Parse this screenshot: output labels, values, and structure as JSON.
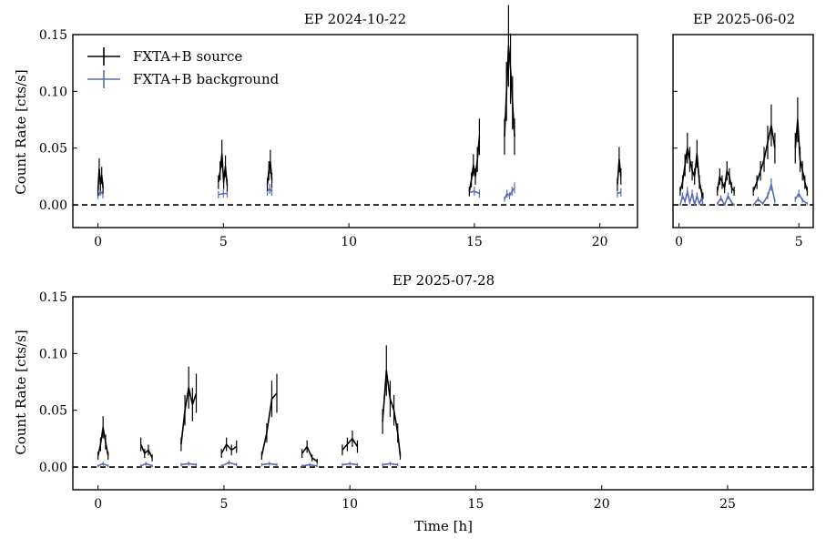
{
  "chart_data": [
    {
      "type": "line",
      "panel": "top-left",
      "title": "EP 2024-10-22",
      "xlabel": "",
      "ylabel": "Count Rate [cts/s]",
      "xlim": [
        -1.0,
        21.5
      ],
      "ylim": [
        -0.02,
        0.15
      ],
      "xticks": [
        0,
        5,
        10,
        15,
        20
      ],
      "xtick_labels": [
        "0",
        "5",
        "10",
        "15",
        "20"
      ],
      "yticks": [
        0.0,
        0.05,
        0.1,
        0.15
      ],
      "ytick_labels": [
        "0.00",
        "0.05",
        "0.10",
        "0.15"
      ],
      "legend": {
        "placement": "top-left",
        "entries": [
          {
            "label": "FXTA+B source",
            "color": "#000000"
          },
          {
            "label": "FXTA+B background",
            "color": "#5b6bb0"
          }
        ]
      },
      "series": [
        {
          "name": "FXTA+B source",
          "color": "#000000",
          "segments": [
            {
              "x": [
                0.0,
                0.05,
                0.1,
                0.15,
                0.2
              ],
              "y": [
                0.012,
                0.032,
                0.018,
                0.026,
                0.015
              ]
            },
            {
              "x": [
                4.8,
                4.87,
                4.94,
                5.01,
                5.08,
                5.15
              ],
              "y": [
                0.02,
                0.03,
                0.045,
                0.02,
                0.034,
                0.017
              ]
            },
            {
              "x": [
                6.75,
                6.81,
                6.87,
                6.93
              ],
              "y": [
                0.018,
                0.03,
                0.038,
                0.022
              ]
            },
            {
              "x": [
                14.8,
                14.88,
                14.96,
                15.04,
                15.12,
                15.2
              ],
              "y": [
                0.012,
                0.022,
                0.035,
                0.025,
                0.04,
                0.06
              ]
            },
            {
              "x": [
                16.2,
                16.28,
                16.36,
                16.44,
                16.52,
                16.6
              ],
              "y": [
                0.06,
                0.1,
                0.14,
                0.12,
                0.09,
                0.06
              ]
            },
            {
              "x": [
                20.7,
                20.77,
                20.84
              ],
              "y": [
                0.018,
                0.04,
                0.025
              ]
            }
          ]
        },
        {
          "name": "FXTA+B background",
          "color": "#5b6bb0",
          "segments": [
            {
              "x": [
                0.0,
                0.1,
                0.2
              ],
              "y": [
                0.008,
                0.012,
                0.009
              ]
            },
            {
              "x": [
                4.8,
                5.0,
                5.15
              ],
              "y": [
                0.009,
                0.01,
                0.01
              ]
            },
            {
              "x": [
                6.75,
                6.85,
                6.93
              ],
              "y": [
                0.012,
                0.014,
                0.012
              ]
            },
            {
              "x": [
                14.8,
                15.0,
                15.2
              ],
              "y": [
                0.011,
                0.012,
                0.01
              ]
            },
            {
              "x": [
                16.2,
                16.3,
                16.4,
                16.5,
                16.6
              ],
              "y": [
                0.005,
                0.01,
                0.008,
                0.012,
                0.015
              ]
            },
            {
              "x": [
                20.7,
                20.84
              ],
              "y": [
                0.01,
                0.011
              ]
            }
          ]
        }
      ]
    },
    {
      "type": "line",
      "panel": "top-right",
      "title": "EP 2025-06-02",
      "xlabel": "",
      "ylabel": "",
      "xlim": [
        -0.25,
        5.6
      ],
      "ylim": [
        -0.02,
        0.15
      ],
      "xticks": [
        0,
        5
      ],
      "xtick_labels": [
        "0",
        "5"
      ],
      "yticks": [
        0.0,
        0.05,
        0.1,
        0.15
      ],
      "ytick_labels": [],
      "series": [
        {
          "name": "FXTA+B source",
          "color": "#000000",
          "segments": [
            {
              "x": [
                0.05,
                0.15,
                0.25,
                0.35,
                0.45,
                0.55,
                0.65,
                0.75,
                0.85,
                0.95,
                1.0
              ],
              "y": [
                0.012,
                0.02,
                0.035,
                0.05,
                0.04,
                0.03,
                0.025,
                0.045,
                0.02,
                0.01,
                0.008
              ]
            },
            {
              "x": [
                1.6,
                1.7,
                1.8,
                1.9,
                2.0,
                2.1,
                2.2,
                2.3
              ],
              "y": [
                0.012,
                0.025,
                0.02,
                0.015,
                0.03,
                0.025,
                0.015,
                0.012
              ]
            },
            {
              "x": [
                3.1,
                3.25,
                3.4,
                3.55,
                3.7,
                3.85,
                4.0
              ],
              "y": [
                0.012,
                0.02,
                0.03,
                0.04,
                0.055,
                0.07,
                0.05
              ]
            },
            {
              "x": [
                4.85,
                4.95,
                5.05,
                5.15,
                5.25,
                5.35
              ],
              "y": [
                0.05,
                0.075,
                0.04,
                0.03,
                0.02,
                0.012
              ]
            }
          ]
        },
        {
          "name": "FXTA+B background",
          "color": "#5b6bb0",
          "segments": [
            {
              "x": [
                0.05,
                0.15,
                0.25,
                0.35,
                0.45,
                0.55,
                0.65,
                0.75,
                0.85,
                0.95,
                1.0
              ],
              "y": [
                0.0,
                0.008,
                0.003,
                0.012,
                0.002,
                0.01,
                0.0,
                0.008,
                0.001,
                0.006,
                0.0
              ]
            },
            {
              "x": [
                1.6,
                1.75,
                1.9,
                2.05,
                2.2,
                2.3
              ],
              "y": [
                0.001,
                0.006,
                0.0,
                0.008,
                0.002,
                0.0
              ]
            },
            {
              "x": [
                3.1,
                3.3,
                3.5,
                3.7,
                3.85,
                4.0
              ],
              "y": [
                0.0,
                0.005,
                0.001,
                0.008,
                0.018,
                0.003
              ]
            },
            {
              "x": [
                4.85,
                5.0,
                5.15,
                5.35
              ],
              "y": [
                0.005,
                0.01,
                0.004,
                0.001
              ]
            }
          ]
        }
      ]
    },
    {
      "type": "line",
      "panel": "bottom",
      "title": "EP 2025-07-28",
      "xlabel": "Time [h]",
      "ylabel": "Count Rate [cts/s]",
      "xlim": [
        -1.0,
        28.4
      ],
      "ylim": [
        -0.02,
        0.15
      ],
      "xticks": [
        0,
        5,
        10,
        15,
        20,
        25
      ],
      "xtick_labels": [
        "0",
        "5",
        "10",
        "15",
        "20",
        "25"
      ],
      "yticks": [
        0.0,
        0.05,
        0.1,
        0.15
      ],
      "ytick_labels": [
        "0.00",
        "0.05",
        "0.10",
        "0.15"
      ],
      "series": [
        {
          "name": "FXTA+B source",
          "color": "#000000",
          "segments": [
            {
              "x": [
                0.0,
                0.1,
                0.2,
                0.3,
                0.4
              ],
              "y": [
                0.01,
                0.02,
                0.035,
                0.022,
                0.01
              ]
            },
            {
              "x": [
                1.7,
                1.85,
                2.0,
                2.15
              ],
              "y": [
                0.02,
                0.012,
                0.015,
                0.008
              ]
            },
            {
              "x": [
                3.3,
                3.45,
                3.6,
                3.75,
                3.9
              ],
              "y": [
                0.02,
                0.05,
                0.07,
                0.055,
                0.065
              ]
            },
            {
              "x": [
                4.9,
                5.1,
                5.3,
                5.5
              ],
              "y": [
                0.012,
                0.02,
                0.015,
                0.018
              ]
            },
            {
              "x": [
                6.5,
                6.7,
                6.9,
                7.1
              ],
              "y": [
                0.01,
                0.03,
                0.06,
                0.065
              ]
            },
            {
              "x": [
                8.1,
                8.3,
                8.5,
                8.7
              ],
              "y": [
                0.012,
                0.018,
                0.008,
                0.005
              ]
            },
            {
              "x": [
                9.7,
                9.9,
                10.1,
                10.3
              ],
              "y": [
                0.015,
                0.02,
                0.025,
                0.018
              ]
            },
            {
              "x": [
                11.3,
                11.45,
                11.6,
                11.75,
                11.9,
                12.0
              ],
              "y": [
                0.04,
                0.085,
                0.06,
                0.05,
                0.03,
                0.01
              ]
            }
          ]
        },
        {
          "name": "FXTA+B background",
          "color": "#5b6bb0",
          "segments": [
            {
              "x": [
                0.0,
                0.2,
                0.4
              ],
              "y": [
                0.001,
                0.003,
                0.001
              ]
            },
            {
              "x": [
                1.7,
                1.9,
                2.15
              ],
              "y": [
                0.001,
                0.003,
                0.001
              ]
            },
            {
              "x": [
                3.3,
                3.6,
                3.9
              ],
              "y": [
                0.002,
                0.003,
                0.002
              ]
            },
            {
              "x": [
                4.9,
                5.2,
                5.5
              ],
              "y": [
                0.001,
                0.004,
                0.002
              ]
            },
            {
              "x": [
                6.5,
                6.8,
                7.1
              ],
              "y": [
                0.002,
                0.003,
                0.002
              ]
            },
            {
              "x": [
                8.1,
                8.4,
                8.7
              ],
              "y": [
                0.001,
                0.002,
                0.001
              ]
            },
            {
              "x": [
                9.7,
                10.0,
                10.3
              ],
              "y": [
                0.002,
                0.003,
                0.002
              ]
            },
            {
              "x": [
                11.3,
                11.6,
                11.9
              ],
              "y": [
                0.002,
                0.003,
                0.002
              ]
            }
          ]
        }
      ]
    }
  ]
}
